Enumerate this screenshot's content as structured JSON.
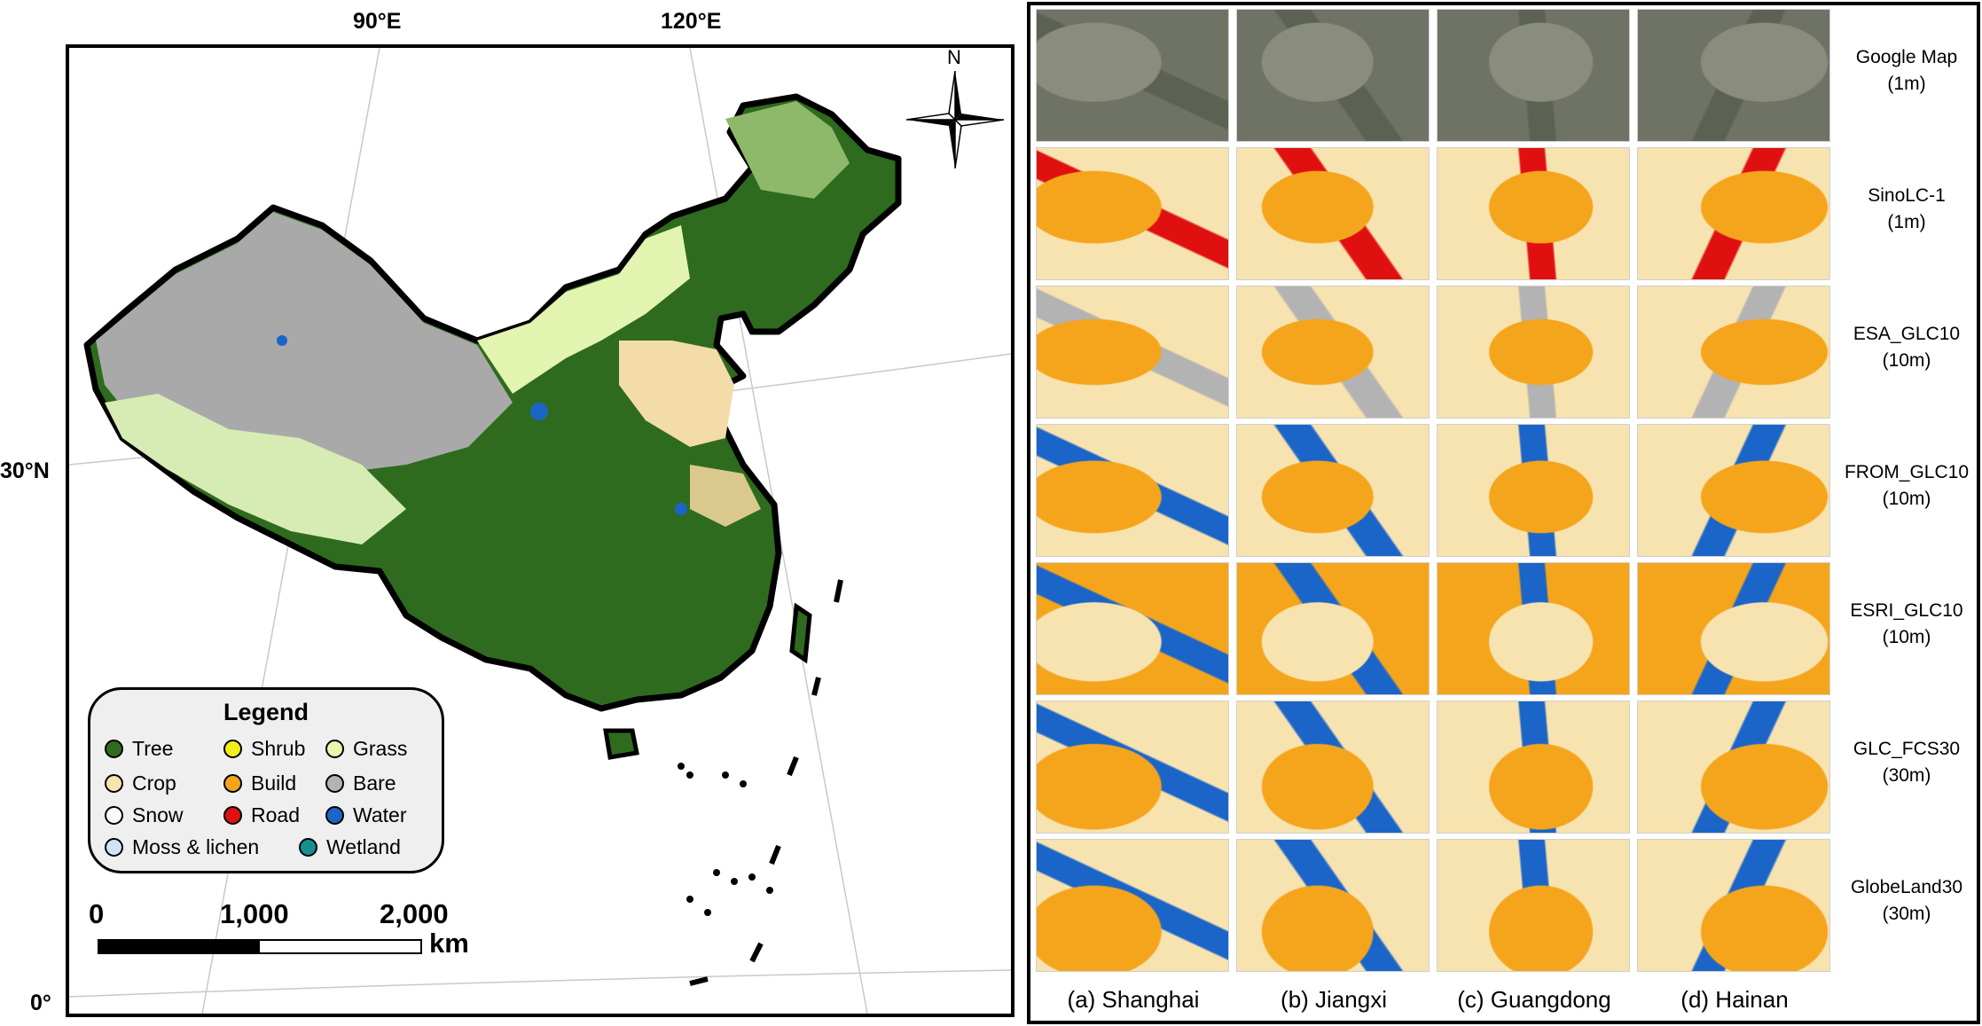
{
  "map": {
    "graticule_labels": {
      "lon_90": "90°E",
      "lon_120": "120°E",
      "lat_30": "30°N",
      "lat_0": "0°"
    },
    "north_arrow_label": "N",
    "legend": {
      "title": "Legend",
      "items": [
        {
          "label": "Tree",
          "color": "#2f6b1e"
        },
        {
          "label": "Shrub",
          "color": "#f2ee17"
        },
        {
          "label": "Grass",
          "color": "#e6f7b0"
        },
        {
          "label": "Crop",
          "color": "#f7e3b0"
        },
        {
          "label": "Build",
          "color": "#f5a51c"
        },
        {
          "label": "Bare",
          "color": "#b3b3b3"
        },
        {
          "label": "Snow",
          "color": "#fafafa"
        },
        {
          "label": "Road",
          "color": "#e01010"
        },
        {
          "label": "Water",
          "color": "#1b65c8"
        },
        {
          "label": "Moss & lichen",
          "color": "#cfe4f7"
        },
        {
          "label": "Wetland",
          "color": "#178f8f"
        }
      ]
    },
    "scale_bar": {
      "ticks": [
        "0",
        "1,000",
        "2,000"
      ],
      "unit": "km"
    }
  },
  "comparison": {
    "rows": [
      {
        "label": "Google Map",
        "resolution": "(1m)"
      },
      {
        "label": "SinoLC-1",
        "resolution": "(1m)"
      },
      {
        "label": "ESA_GLC10",
        "resolution": "(10m)"
      },
      {
        "label": "FROM_GLC10",
        "resolution": "(10m)"
      },
      {
        "label": "ESRI_GLC10",
        "resolution": "(10m)"
      },
      {
        "label": "GLC_FCS30",
        "resolution": "(30m)"
      },
      {
        "label": "GlobeLand30",
        "resolution": "(30m)"
      }
    ],
    "columns": [
      "(a) Shanghai",
      "(b) Jiangxi",
      "(c) Guangdong",
      "(d) Hainan"
    ],
    "colors": {
      "tree": "#2f6b1e",
      "grass": "#e6f7b0",
      "crop": "#f7e3b0",
      "build": "#f5a51c",
      "bare": "#b3b3b3",
      "road": "#e01010",
      "water": "#1b65c8",
      "wetland": "#178f8f",
      "satellite": "#6f7366"
    }
  }
}
